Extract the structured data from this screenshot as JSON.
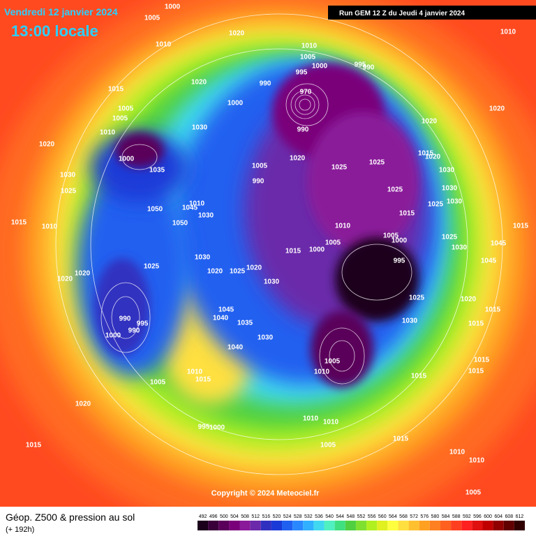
{
  "header": {
    "date": "Vendredi 12 janvier 2024",
    "time": "13:00 locale",
    "run": "Run GEM 12 Z du Jeudi 4 janvier 2024"
  },
  "footer": {
    "title": "Géop. Z500 & pression au sol",
    "lead": "(+ 192h)",
    "copyright": "Copyright © 2024 Meteociel.fr"
  },
  "scale": {
    "labels": [
      492,
      496,
      500,
      504,
      508,
      512,
      516,
      520,
      524,
      528,
      532,
      536,
      540,
      544,
      548,
      552,
      556,
      560,
      564,
      568,
      572,
      576,
      580,
      584,
      588,
      592,
      596,
      600,
      604,
      608,
      612
    ],
    "colors": [
      "#1a001a",
      "#3a003a",
      "#5a005a",
      "#7a007a",
      "#8a1a9a",
      "#6a2aaa",
      "#3030c0",
      "#1a3ad8",
      "#2060f0",
      "#2a88ff",
      "#30b0ff",
      "#40d8f0",
      "#50f0c0",
      "#40e080",
      "#50d040",
      "#80e030",
      "#b0f020",
      "#e0f020",
      "#ffff40",
      "#ffe040",
      "#ffc030",
      "#ffa020",
      "#ff8020",
      "#ff6020",
      "#ff4020",
      "#ff2020",
      "#e01010",
      "#c00000",
      "#900000",
      "#600000",
      "#300000"
    ]
  },
  "pressure_labels": [
    1000,
    1005,
    1010,
    1020,
    1010,
    1015,
    1005,
    1005,
    1010,
    1020,
    1020,
    1000,
    990,
    1005,
    1010,
    1000,
    995,
    995,
    990,
    970,
    990,
    1020,
    1020,
    1015,
    1020,
    1025,
    1025,
    1030,
    1030,
    1025,
    1025,
    1030,
    1020,
    1005,
    990,
    1030,
    1000,
    1035,
    1030,
    1025,
    1050,
    1045,
    1010,
    1030,
    1050,
    1015,
    1010,
    1015,
    1010,
    1005,
    1000,
    1015,
    1005,
    1000,
    1025,
    1015,
    1045,
    1030,
    1045,
    995,
    1020,
    1020,
    1025,
    1030,
    1020,
    1025,
    1020,
    1030,
    1025,
    1020,
    1015,
    1015,
    1030,
    1045,
    1040,
    1035,
    990,
    995,
    990,
    1000,
    1040,
    1030,
    1005,
    1010,
    1015,
    1015,
    1015,
    1010,
    1015,
    1005,
    1020,
    995,
    1000,
    1010,
    1010,
    1005,
    1015,
    1015,
    1010,
    1010,
    1005
  ]
}
